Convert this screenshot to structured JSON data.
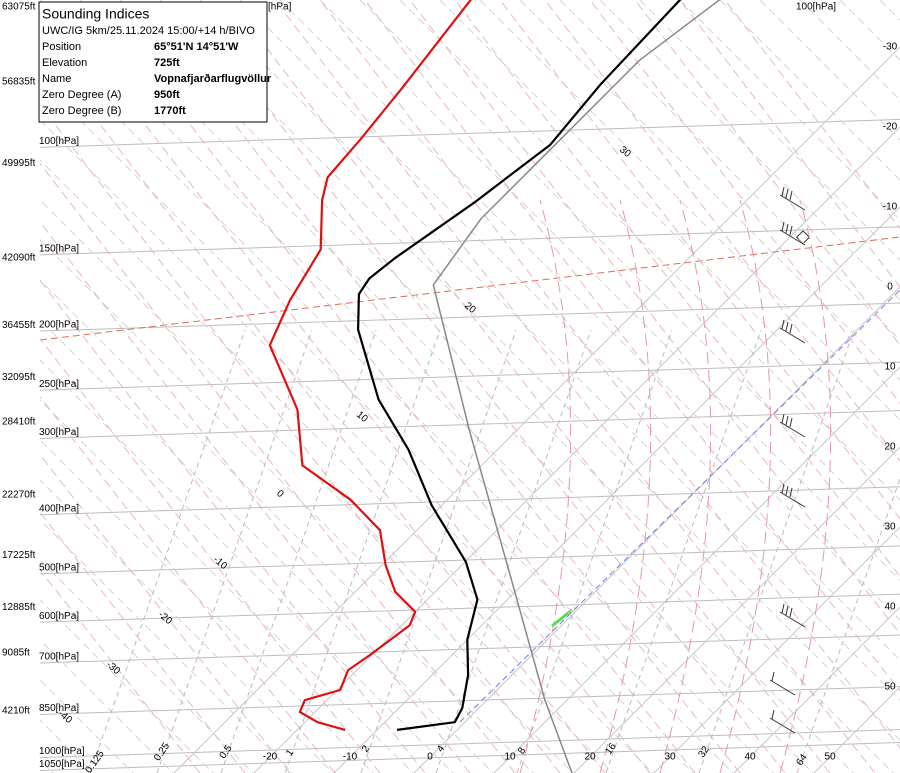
{
  "chart_data": {
    "type": "skew-t",
    "title": "Sounding Indices",
    "subtitle": "UWC/IG 5km/25.11.2024 15:00/+14 h/BIVO",
    "info": [
      [
        "Position",
        "65°51'N 14°51'W"
      ],
      [
        "Elevation",
        "725ft"
      ],
      [
        "Name",
        "Vopnafjarðarflugvöllur"
      ],
      [
        "Zero Degree (A)",
        "950ft"
      ],
      [
        "Zero Degree (B)",
        "1770ft"
      ]
    ],
    "yticks": [
      {
        "value": 100,
        "label": "100[hPa]"
      },
      {
        "value": 150,
        "label": "150[hPa]"
      },
      {
        "value": 200,
        "label": "200[hPa]"
      },
      {
        "value": 250,
        "label": "250[hPa]"
      },
      {
        "value": 300,
        "label": "300[hPa]"
      },
      {
        "value": 400,
        "label": "400[hPa]"
      },
      {
        "value": 500,
        "label": "500[hPa]"
      },
      {
        "value": 600,
        "label": "600[hPa]"
      },
      {
        "value": 700,
        "label": "700[hPa]"
      },
      {
        "value": 850,
        "label": "850[hPa]"
      },
      {
        "value": 1000,
        "label": "1000[hPa]"
      },
      {
        "value": 1050,
        "label": "1050[hPa]"
      }
    ],
    "altitude_ticks": [
      {
        "value": 63075,
        "label": "63075ft"
      },
      {
        "value": 56835,
        "label": "56835ft"
      },
      {
        "value": 49995,
        "label": "49995ft"
      },
      {
        "value": 42090,
        "label": "42090ft"
      },
      {
        "value": 36455,
        "label": "36455ft"
      },
      {
        "value": 32095,
        "label": "32095ft"
      },
      {
        "value": 28410,
        "label": "28410ft"
      },
      {
        "value": 22270,
        "label": "22270ft"
      },
      {
        "value": 17225,
        "label": "17225ft"
      },
      {
        "value": 12885,
        "label": "12885ft"
      },
      {
        "value": 9085,
        "label": "9085ft"
      },
      {
        "value": 4210,
        "label": "4210ft"
      }
    ],
    "xticks": [
      -30,
      -20,
      -10,
      0,
      10,
      20,
      30,
      40,
      50
    ],
    "adiabat_labels": [
      -40,
      -30,
      -20,
      -10,
      0,
      10,
      20,
      30
    ],
    "mixing_ratio_labels": [
      0.125,
      0.25,
      0.5,
      1,
      2,
      4,
      8,
      16,
      32,
      64
    ],
    "extra_labels": [
      "[hPa]",
      "100[hPa]"
    ],
    "series": [
      {
        "color": "#000000",
        "pressure": [
          901,
          875,
          829,
          732,
          641,
          551,
          478,
          386,
          313,
          259,
          199,
          174,
          164,
          152,
          123,
          99,
          79,
          57
        ],
        "values": [
          -7.5,
          -1.25,
          -2.1,
          -5.5,
          -10,
          -13.75,
          -19.9,
          -31.25,
          -41.1,
          -51.1,
          -62.4,
          -66.75,
          -67.4,
          -66.75,
          -63.75,
          -61.5,
          -62.75,
          -63.4
        ]
      },
      {
        "color": "#dd1111",
        "pressure": [
          901,
          875,
          842,
          805,
          775,
          719,
          679,
          607,
          577,
          535,
          483,
          424,
          378,
          332,
          269,
          211,
          178,
          147,
          122,
          112,
          97,
          80,
          57
        ],
        "values": [
          -14,
          -18.4,
          -21.9,
          -22.75,
          -19.6,
          -21.1,
          -20.25,
          -19,
          -20,
          -25,
          -29.6,
          -34.6,
          -42.1,
          -52.4,
          -60,
          -71.5,
          -74.6,
          -77.1,
          -83.1,
          -85.25,
          -85.9,
          -87.1,
          -89.6
        ]
      },
      {
        "color": "#888888",
        "pressure": [
          1060,
          805,
          502,
          291,
          168,
          131,
          97,
          72,
          57
        ],
        "values": [
          19.75,
          7.25,
          -12.75,
          -35.9,
          -58.6,
          -60.9,
          -60.9,
          -60.9,
          -58.4
        ]
      }
    ]
  }
}
